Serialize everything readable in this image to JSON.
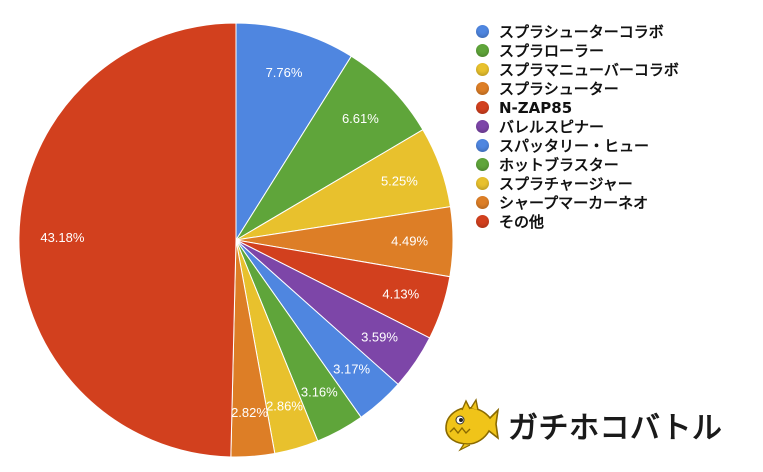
{
  "chart_data": {
    "type": "pie",
    "series": [
      {
        "name": "スプラシューターコラボ",
        "value": 7.76,
        "label": "7.76%",
        "color": "#4f86e0"
      },
      {
        "name": "スプラローラー",
        "value": 6.61,
        "label": "6.61%",
        "color": "#5fa53a"
      },
      {
        "name": "スプラマニューバーコラボ",
        "value": 5.25,
        "label": "5.25%",
        "color": "#e8c12d"
      },
      {
        "name": "スプラシューター",
        "value": 4.49,
        "label": "4.49%",
        "color": "#dd7e26"
      },
      {
        "name": "N-ZAP85",
        "value": 4.13,
        "label": "4.13%",
        "color": "#d2401e"
      },
      {
        "name": "バレルスピナー",
        "value": 3.59,
        "label": "3.59%",
        "color": "#7d46a8"
      },
      {
        "name": "スパッタリー・ヒュー",
        "value": 3.17,
        "label": "3.17%",
        "color": "#4f86e0"
      },
      {
        "name": "ホットブラスター",
        "value": 3.16,
        "label": "3.16%",
        "color": "#5fa53a"
      },
      {
        "name": "スプラチャージャー",
        "value": 2.86,
        "label": "2.86%",
        "color": "#e8c12d"
      },
      {
        "name": "シャープマーカーネオ",
        "value": 2.82,
        "label": "2.82%",
        "color": "#dd7e26"
      },
      {
        "name": "その他",
        "value": 43.18,
        "label": "43.18%",
        "color": "#d2401e"
      }
    ],
    "start": "12 o'clock",
    "direction": "clockwise",
    "legend_placement": "right"
  },
  "brand": {
    "text": "ガチホコバトル",
    "icon": "golden-fish-icon"
  }
}
